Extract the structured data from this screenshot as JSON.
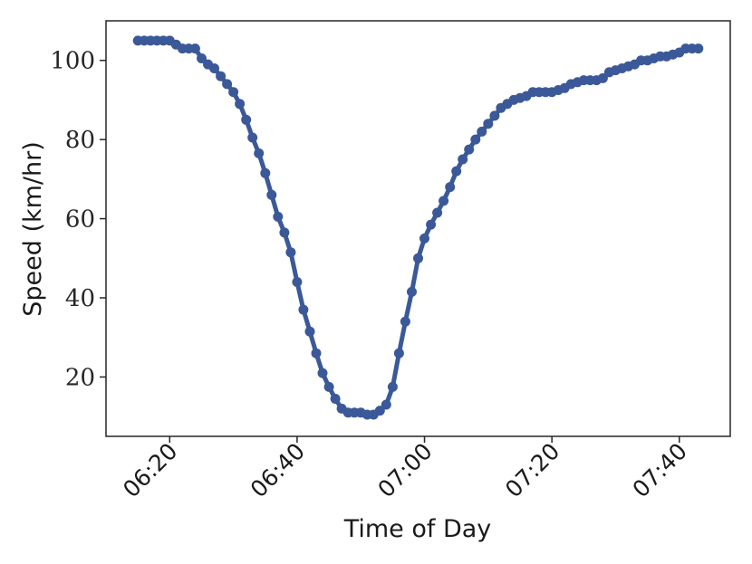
{
  "chart_data": {
    "type": "line",
    "xlabel": "Time of Day",
    "ylabel": "Speed (km/hr)",
    "x_tick_labels": [
      "06:20",
      "06:40",
      "07:00",
      "07:20",
      "07:40"
    ],
    "x_ticks_minutes": [
      380,
      400,
      420,
      440,
      460
    ],
    "y_ticks": [
      20,
      40,
      60,
      80,
      100
    ],
    "xlim": [
      "06:10",
      "07:48"
    ],
    "ylim": [
      5,
      110
    ],
    "grid": false,
    "legend": "none",
    "color": "#3b5998",
    "series": [
      {
        "x": [
          "06:15",
          "06:16",
          "06:17",
          "06:18",
          "06:19",
          "06:20",
          "06:21",
          "06:22",
          "06:23",
          "06:24",
          "06:25",
          "06:26",
          "06:27",
          "06:28",
          "06:29",
          "06:30",
          "06:31",
          "06:32",
          "06:33",
          "06:34",
          "06:35",
          "06:36",
          "06:37",
          "06:38",
          "06:39",
          "06:40",
          "06:41",
          "06:42",
          "06:43",
          "06:44",
          "06:45",
          "06:46",
          "06:47",
          "06:48",
          "06:49",
          "06:50",
          "06:51",
          "06:52",
          "06:53",
          "06:54",
          "06:55",
          "06:56",
          "06:57",
          "06:58",
          "06:59",
          "07:00",
          "07:01",
          "07:02",
          "07:03",
          "07:04",
          "07:05",
          "07:06",
          "07:07",
          "07:08",
          "07:09",
          "07:10",
          "07:11",
          "07:12",
          "07:13",
          "07:14",
          "07:15",
          "07:16",
          "07:17",
          "07:18",
          "07:19",
          "07:20",
          "07:21",
          "07:22",
          "07:23",
          "07:24",
          "07:25",
          "07:26",
          "07:27",
          "07:28",
          "07:29",
          "07:30",
          "07:31",
          "07:32",
          "07:33",
          "07:34",
          "07:35",
          "07:36",
          "07:37",
          "07:38",
          "07:39",
          "07:40",
          "07:41",
          "07:42",
          "07:43"
        ],
        "y": [
          105,
          105,
          105,
          105,
          105,
          105,
          104,
          103,
          103,
          103,
          100.5,
          99,
          98,
          96,
          94,
          92,
          89,
          85,
          80.5,
          76.5,
          71.5,
          66,
          60.5,
          56.5,
          51.5,
          44,
          37,
          31.5,
          26,
          21,
          17.5,
          14.5,
          12,
          11,
          11,
          11,
          10.5,
          10.5,
          11.5,
          13,
          17.5,
          26,
          34,
          41.5,
          50,
          55,
          58.5,
          61.5,
          64.5,
          68,
          72,
          75,
          77.5,
          80,
          82,
          84,
          86,
          88,
          89,
          90,
          90.5,
          91,
          92,
          92,
          92,
          92,
          92.5,
          93,
          94,
          94.5,
          95,
          95,
          95,
          95.5,
          97,
          97.5,
          98,
          98.5,
          99,
          100,
          100,
          100.5,
          101,
          101,
          101.5,
          102,
          103,
          103,
          103
        ]
      }
    ]
  }
}
